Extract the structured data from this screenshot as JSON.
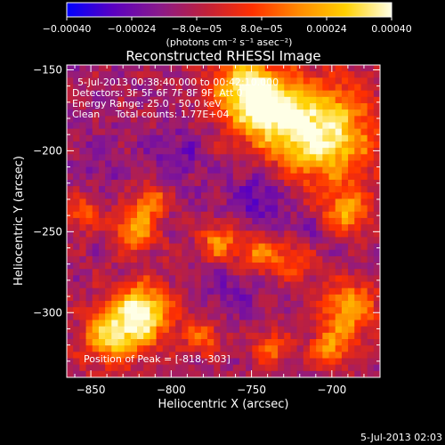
{
  "chart_data": {
    "type": "heatmap",
    "title": "Reconstructed RHESSI Image",
    "xlabel": "Heliocentric X (arcsec)",
    "ylabel": "Heliocentric Y (arcsec)",
    "xlim": [
      -865,
      -670
    ],
    "ylim": [
      -340,
      -147
    ],
    "xticks": [
      -850,
      -800,
      -750,
      -700
    ],
    "yticks": [
      -150,
      -200,
      -250,
      -300
    ],
    "x_tick_labels": [
      "−850",
      "−800",
      "−750",
      "−700"
    ],
    "y_tick_labels": [
      "−150",
      "−200",
      "−250",
      "−300"
    ],
    "colorbar": {
      "range": [
        -0.0004,
        0.0004
      ],
      "tick_values": [
        -0.0004,
        -0.00024,
        -8e-05,
        8e-05,
        0.00024,
        0.0004
      ],
      "tick_labels": [
        "−0.00040",
        "−0.00024",
        "−8.0e−05",
        "8.0e−05",
        "0.00024",
        "0.00040"
      ],
      "unit_label": "(photons cm⁻² s⁻¹ asec⁻²)",
      "colors": [
        "#0000ff",
        "#5a00c0",
        "#8a1a8a",
        "#c0203a",
        "#ff3000",
        "#ff8a00",
        "#ffd000",
        "#ffffe6"
      ]
    },
    "info": {
      "time_range": "5-Jul-2013 00:38:40.000 to 00:42:10.000",
      "detectors": "Detectors: 3F 5F 6F 7F 8F 9F, Att 0",
      "energy": "Energy Range: 25.0 - 50.0 keV",
      "clean": "Clean     Total counts: 1.77E+04"
    },
    "peak_label": "Position of Peak = [-818,-303]",
    "peak_position": [
      -818,
      -303
    ],
    "bright_regions": [
      {
        "x": -705,
        "y": -190,
        "sigma": 22,
        "amp": 1.0
      },
      {
        "x": -740,
        "y": -175,
        "sigma": 16,
        "amp": 0.8
      },
      {
        "x": -755,
        "y": -160,
        "sigma": 14,
        "amp": 0.7
      },
      {
        "x": -818,
        "y": -303,
        "sigma": 13,
        "amp": 1.0
      },
      {
        "x": -838,
        "y": -318,
        "sigma": 12,
        "amp": 0.75
      },
      {
        "x": -822,
        "y": -250,
        "sigma": 9,
        "amp": 0.7
      },
      {
        "x": -812,
        "y": -232,
        "sigma": 7,
        "amp": 0.55
      },
      {
        "x": -770,
        "y": -258,
        "sigma": 8,
        "amp": 0.6
      },
      {
        "x": -745,
        "y": -265,
        "sigma": 9,
        "amp": 0.55
      },
      {
        "x": -722,
        "y": -268,
        "sigma": 9,
        "amp": 0.5
      },
      {
        "x": -690,
        "y": -240,
        "sigma": 10,
        "amp": 0.6
      },
      {
        "x": -688,
        "y": -300,
        "sigma": 12,
        "amp": 0.7
      },
      {
        "x": -700,
        "y": -325,
        "sigma": 9,
        "amp": 0.55
      },
      {
        "x": -780,
        "y": -318,
        "sigma": 8,
        "amp": 0.45
      },
      {
        "x": -738,
        "y": -325,
        "sigma": 8,
        "amp": 0.45
      },
      {
        "x": -855,
        "y": -240,
        "sigma": 8,
        "amp": 0.4
      }
    ],
    "dark_regions": [
      {
        "x": -745,
        "y": -230,
        "sigma": 14,
        "amp": 0.9
      },
      {
        "x": -795,
        "y": -205,
        "sigma": 13,
        "amp": 0.6
      },
      {
        "x": -715,
        "y": -255,
        "sigma": 10,
        "amp": 0.7
      },
      {
        "x": -760,
        "y": -290,
        "sigma": 12,
        "amp": 0.5
      },
      {
        "x": -845,
        "y": -205,
        "sigma": 12,
        "amp": 0.45
      }
    ]
  },
  "footer": {
    "timestamp": "5-Jul-2013 02:03"
  }
}
